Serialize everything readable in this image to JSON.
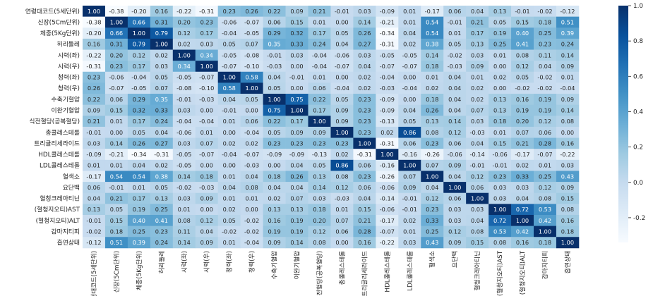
{
  "chart_data": {
    "type": "heatmap",
    "title": "",
    "xlabel": "",
    "ylabel": "",
    "labels": [
      "연령대코드(5세단위)",
      "신장(5Cm단위)",
      "체중(5Kg단위)",
      "허리둘레",
      "시력(좌)",
      "시력(우)",
      "청력(좌)",
      "청력(우)",
      "수축기혈압",
      "이완기혈압",
      "식전혈당(공복혈당)",
      "총콜레스테롤",
      "트리글리세라이드",
      "HDL콜레스테롤",
      "LDL콜레스테롤",
      "혈색소",
      "요단백",
      "혈청크레아티닌",
      "(혈청지오티)AST",
      "(혈청지오티)ALT",
      "감마지티피",
      "흡연상태"
    ],
    "values": [
      [
        1.0,
        -0.38,
        -0.2,
        0.16,
        -0.22,
        -0.31,
        0.23,
        0.26,
        0.22,
        0.09,
        0.21,
        -0.01,
        0.03,
        -0.09,
        0.01,
        -0.17,
        0.06,
        0.04,
        0.13,
        -0.01,
        -0.02,
        -0.12
      ],
      [
        -0.38,
        1.0,
        0.66,
        0.31,
        0.2,
        0.23,
        -0.06,
        -0.07,
        0.06,
        0.15,
        0.01,
        -0.0,
        0.14,
        -0.21,
        0.01,
        0.54,
        -0.01,
        0.21,
        0.05,
        0.15,
        0.18,
        0.51
      ],
      [
        -0.2,
        0.66,
        1.0,
        0.79,
        0.12,
        0.17,
        -0.04,
        -0.05,
        0.29,
        0.32,
        0.17,
        0.05,
        0.26,
        -0.34,
        0.04,
        0.54,
        0.01,
        0.17,
        0.19,
        0.4,
        0.25,
        0.39
      ],
      [
        0.16,
        0.31,
        0.79,
        1.0,
        0.02,
        0.03,
        0.05,
        0.07,
        0.35,
        0.33,
        0.24,
        0.04,
        0.27,
        -0.31,
        0.02,
        0.38,
        0.05,
        0.13,
        0.25,
        0.41,
        0.23,
        0.24
      ],
      [
        -0.22,
        0.2,
        0.12,
        0.02,
        1.0,
        0.34,
        -0.05,
        -0.08,
        -0.01,
        0.03,
        -0.04,
        -0.06,
        0.03,
        -0.05,
        -0.05,
        0.14,
        -0.02,
        0.03,
        0.01,
        0.08,
        0.11,
        0.14
      ],
      [
        -0.31,
        0.23,
        0.17,
        0.03,
        0.34,
        1.0,
        -0.07,
        -0.1,
        -0.03,
        -0.0,
        -0.04,
        -0.07,
        0.04,
        -0.07,
        -0.07,
        0.18,
        -0.03,
        0.09,
        0.0,
        0.12,
        0.04,
        0.09
      ],
      [
        0.23,
        -0.06,
        -0.04,
        0.05,
        -0.05,
        -0.07,
        1.0,
        0.58,
        0.04,
        -0.01,
        0.01,
        -0.0,
        0.02,
        -0.04,
        -0.0,
        0.01,
        0.04,
        0.01,
        0.02,
        0.05,
        -0.02,
        0.01
      ],
      [
        0.26,
        -0.07,
        -0.05,
        0.07,
        -0.08,
        -0.1,
        0.58,
        1.0,
        0.05,
        -0.0,
        0.06,
        -0.04,
        0.02,
        -0.03,
        -0.04,
        0.02,
        0.04,
        0.02,
        -0.0,
        -0.02,
        -0.02,
        -0.04
      ],
      [
        0.22,
        0.06,
        0.29,
        0.35,
        -0.01,
        -0.03,
        0.04,
        0.05,
        1.0,
        0.75,
        0.22,
        0.05,
        0.23,
        -0.09,
        -0.0,
        0.18,
        0.04,
        0.02,
        0.13,
        0.16,
        0.19,
        0.09
      ],
      [
        0.09,
        0.15,
        0.32,
        0.33,
        0.03,
        -0.0,
        -0.01,
        -0.0,
        0.75,
        1.0,
        0.17,
        0.09,
        0.23,
        -0.09,
        0.04,
        0.26,
        0.04,
        0.07,
        0.13,
        0.19,
        0.19,
        0.14
      ],
      [
        0.21,
        0.01,
        0.17,
        0.24,
        -0.04,
        -0.04,
        0.01,
        0.06,
        0.22,
        0.17,
        1.0,
        0.09,
        0.23,
        -0.13,
        0.05,
        0.13,
        0.14,
        0.03,
        0.18,
        0.2,
        0.12,
        0.08
      ],
      [
        -0.01,
        -0.0,
        0.05,
        0.04,
        -0.06,
        0.01,
        -0.0,
        -0.04,
        0.05,
        0.09,
        0.09,
        1.0,
        0.23,
        0.02,
        0.86,
        0.08,
        0.12,
        -0.03,
        0.01,
        0.07,
        0.06,
        0.0
      ],
      [
        0.03,
        0.14,
        0.26,
        0.27,
        0.03,
        0.07,
        0.02,
        0.02,
        0.23,
        0.23,
        0.23,
        0.23,
        1.0,
        -0.31,
        0.06,
        0.23,
        0.06,
        0.04,
        0.15,
        0.21,
        0.28,
        0.16
      ],
      [
        -0.09,
        -0.21,
        -0.34,
        -0.31,
        -0.05,
        -0.07,
        -0.04,
        -0.07,
        -0.09,
        -0.09,
        -0.13,
        0.02,
        -0.31,
        1.0,
        -0.16,
        -0.26,
        -0.06,
        -0.14,
        -0.06,
        -0.17,
        -0.07,
        -0.22
      ],
      [
        0.01,
        0.01,
        0.04,
        0.02,
        -0.05,
        0.0,
        -0.0,
        -0.03,
        -0.0,
        0.04,
        0.05,
        0.86,
        0.06,
        -0.16,
        1.0,
        0.07,
        0.09,
        -0.01,
        -0.01,
        0.02,
        0.01,
        0.03
      ],
      [
        -0.17,
        0.54,
        0.54,
        0.38,
        0.14,
        0.18,
        0.01,
        0.04,
        0.18,
        0.26,
        0.13,
        0.08,
        0.23,
        -0.26,
        0.07,
        1.0,
        0.04,
        0.12,
        0.23,
        0.33,
        0.25,
        0.43
      ],
      [
        0.06,
        -0.01,
        0.01,
        0.05,
        -0.02,
        -0.03,
        0.04,
        0.08,
        0.04,
        0.04,
        0.14,
        0.12,
        0.06,
        -0.06,
        0.09,
        0.04,
        1.0,
        0.06,
        0.03,
        0.03,
        0.12,
        0.09
      ],
      [
        0.04,
        0.21,
        0.17,
        0.13,
        0.03,
        0.09,
        0.01,
        0.01,
        0.02,
        0.07,
        0.03,
        -0.03,
        0.04,
        -0.14,
        -0.01,
        0.12,
        0.06,
        1.0,
        0.03,
        0.04,
        0.08,
        0.15
      ],
      [
        0.13,
        0.05,
        0.19,
        0.25,
        0.01,
        0.0,
        0.02,
        -0.0,
        0.13,
        0.13,
        0.18,
        0.01,
        0.15,
        -0.06,
        -0.01,
        0.23,
        0.03,
        0.03,
        1.0,
        0.72,
        0.53,
        0.08
      ],
      [
        -0.01,
        0.15,
        0.4,
        0.41,
        0.08,
        0.12,
        0.05,
        -0.02,
        0.16,
        0.19,
        0.2,
        0.07,
        0.21,
        -0.17,
        0.02,
        0.33,
        0.03,
        0.04,
        0.72,
        1.0,
        0.42,
        0.16
      ],
      [
        -0.02,
        0.18,
        0.25,
        0.23,
        0.11,
        0.04,
        -0.02,
        -0.02,
        0.19,
        0.19,
        0.12,
        0.06,
        0.28,
        -0.07,
        0.01,
        0.25,
        0.12,
        0.08,
        0.53,
        0.42,
        1.0,
        0.18
      ],
      [
        -0.12,
        0.51,
        0.39,
        0.24,
        0.14,
        0.09,
        0.01,
        -0.04,
        0.09,
        0.14,
        0.08,
        0.0,
        0.16,
        -0.22,
        0.03,
        0.43,
        0.09,
        0.15,
        0.08,
        0.16,
        0.18,
        1.0
      ]
    ],
    "colorbar": {
      "cmap": "Blues",
      "min": -0.34,
      "max": 1.0,
      "ticks": [
        1.0,
        0.8,
        0.6,
        0.4,
        0.2,
        0.0,
        -0.2
      ],
      "tick_labels": [
        "1.0",
        "0.8",
        "0.6",
        "0.4",
        "0.2",
        "0.0",
        "-0.2"
      ]
    }
  }
}
